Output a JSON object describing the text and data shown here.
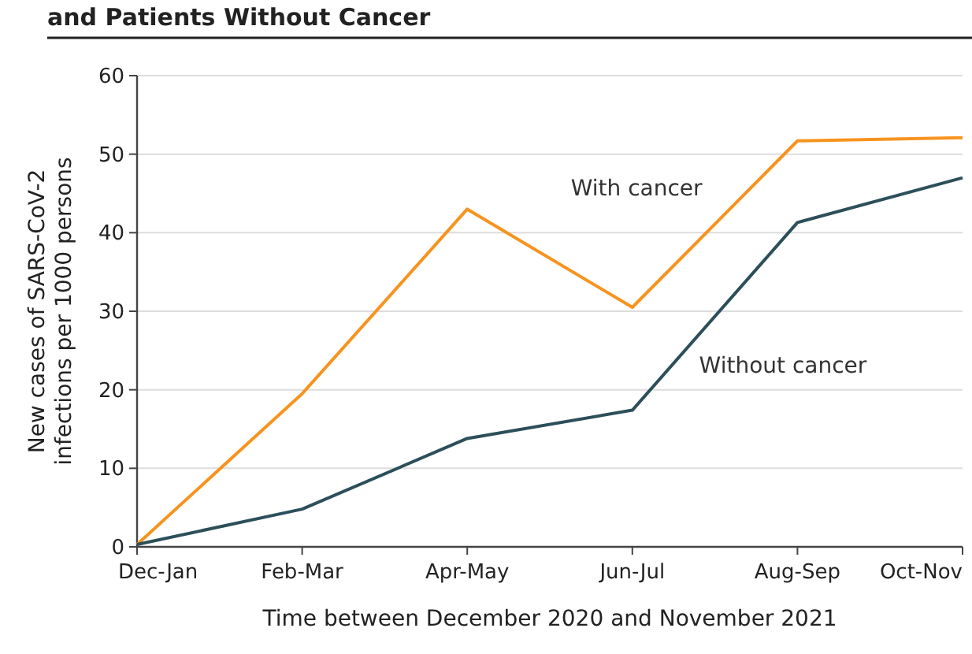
{
  "chart_data": {
    "type": "line",
    "title": "and Patients Without Cancer",
    "xlabel": "Time between December 2020 and November 2021",
    "ylabel": "New cases of SARS-CoV-2\ninfections per 1000 persons",
    "categories": [
      "Dec-Jan",
      "Feb-Mar",
      "Apr-May",
      "Jun-Jul",
      "Aug-Sep",
      "Oct-Nov"
    ],
    "series": [
      {
        "name": "With cancer",
        "color": "#f7931e",
        "values": [
          0.3,
          19.5,
          43,
          30.5,
          51.7,
          52.1
        ]
      },
      {
        "name": "Without cancer",
        "color": "#2c4f5a",
        "values": [
          0.3,
          4.8,
          13.8,
          17.4,
          41.3,
          47
        ]
      }
    ],
    "ylim": [
      0,
      60
    ],
    "yticks": [
      0,
      10,
      20,
      30,
      40,
      50,
      60
    ],
    "grid": "y",
    "marker": "none",
    "line_style": "solid"
  }
}
